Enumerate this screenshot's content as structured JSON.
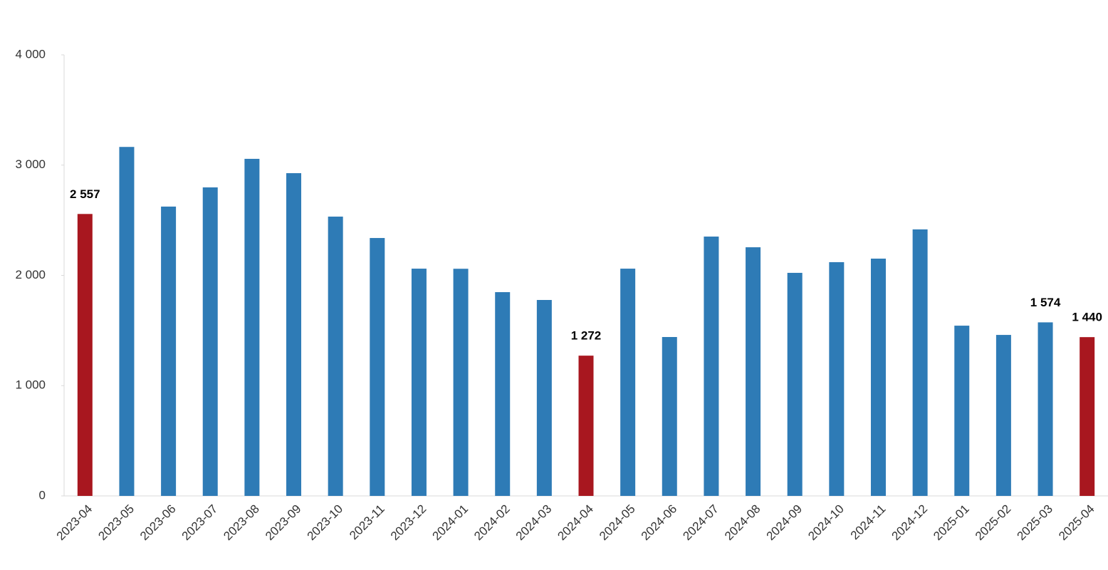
{
  "chart_data": {
    "type": "bar",
    "categories": [
      "2023-04",
      "2023-05",
      "2023-06",
      "2023-07",
      "2023-08",
      "2023-09",
      "2023-10",
      "2023-11",
      "2023-12",
      "2024-01",
      "2024-02",
      "2024-03",
      "2024-04",
      "2024-05",
      "2024-06",
      "2024-07",
      "2024-08",
      "2024-09",
      "2024-10",
      "2024-11",
      "2024-12",
      "2025-01",
      "2025-02",
      "2025-03",
      "2025-04"
    ],
    "values": [
      2557,
      3165,
      2624,
      2798,
      3057,
      2927,
      2533,
      2339,
      2061,
      2060,
      1848,
      1777,
      1272,
      2061,
      1441,
      2352,
      2255,
      2023,
      2120,
      2152,
      2417,
      1544,
      1460,
      1574,
      1440
    ],
    "value_labels": [
      "2 557",
      null,
      null,
      null,
      null,
      null,
      null,
      null,
      null,
      null,
      null,
      null,
      "1 272",
      null,
      null,
      null,
      null,
      null,
      null,
      null,
      null,
      null,
      null,
      "1 574",
      "1 440"
    ],
    "colors": [
      "#a8171f",
      "#2e7bb6",
      "#2e7bb6",
      "#2e7bb6",
      "#2e7bb6",
      "#2e7bb6",
      "#2e7bb6",
      "#2e7bb6",
      "#2e7bb6",
      "#2e7bb6",
      "#2e7bb6",
      "#2e7bb6",
      "#a8171f",
      "#2e7bb6",
      "#2e7bb6",
      "#2e7bb6",
      "#2e7bb6",
      "#2e7bb6",
      "#2e7bb6",
      "#2e7bb6",
      "#2e7bb6",
      "#2e7bb6",
      "#2e7bb6",
      "#2e7bb6",
      "#a8171f"
    ],
    "ylim": [
      0,
      4000
    ],
    "yticks": [
      0,
      {
        "value": 1000,
        "label": "1 000"
      },
      {
        "value": 2000,
        "label": "2 000"
      },
      {
        "value": 3000,
        "label": "3 000"
      },
      {
        "value": 4000,
        "label": "4 000"
      }
    ],
    "grid": false
  }
}
